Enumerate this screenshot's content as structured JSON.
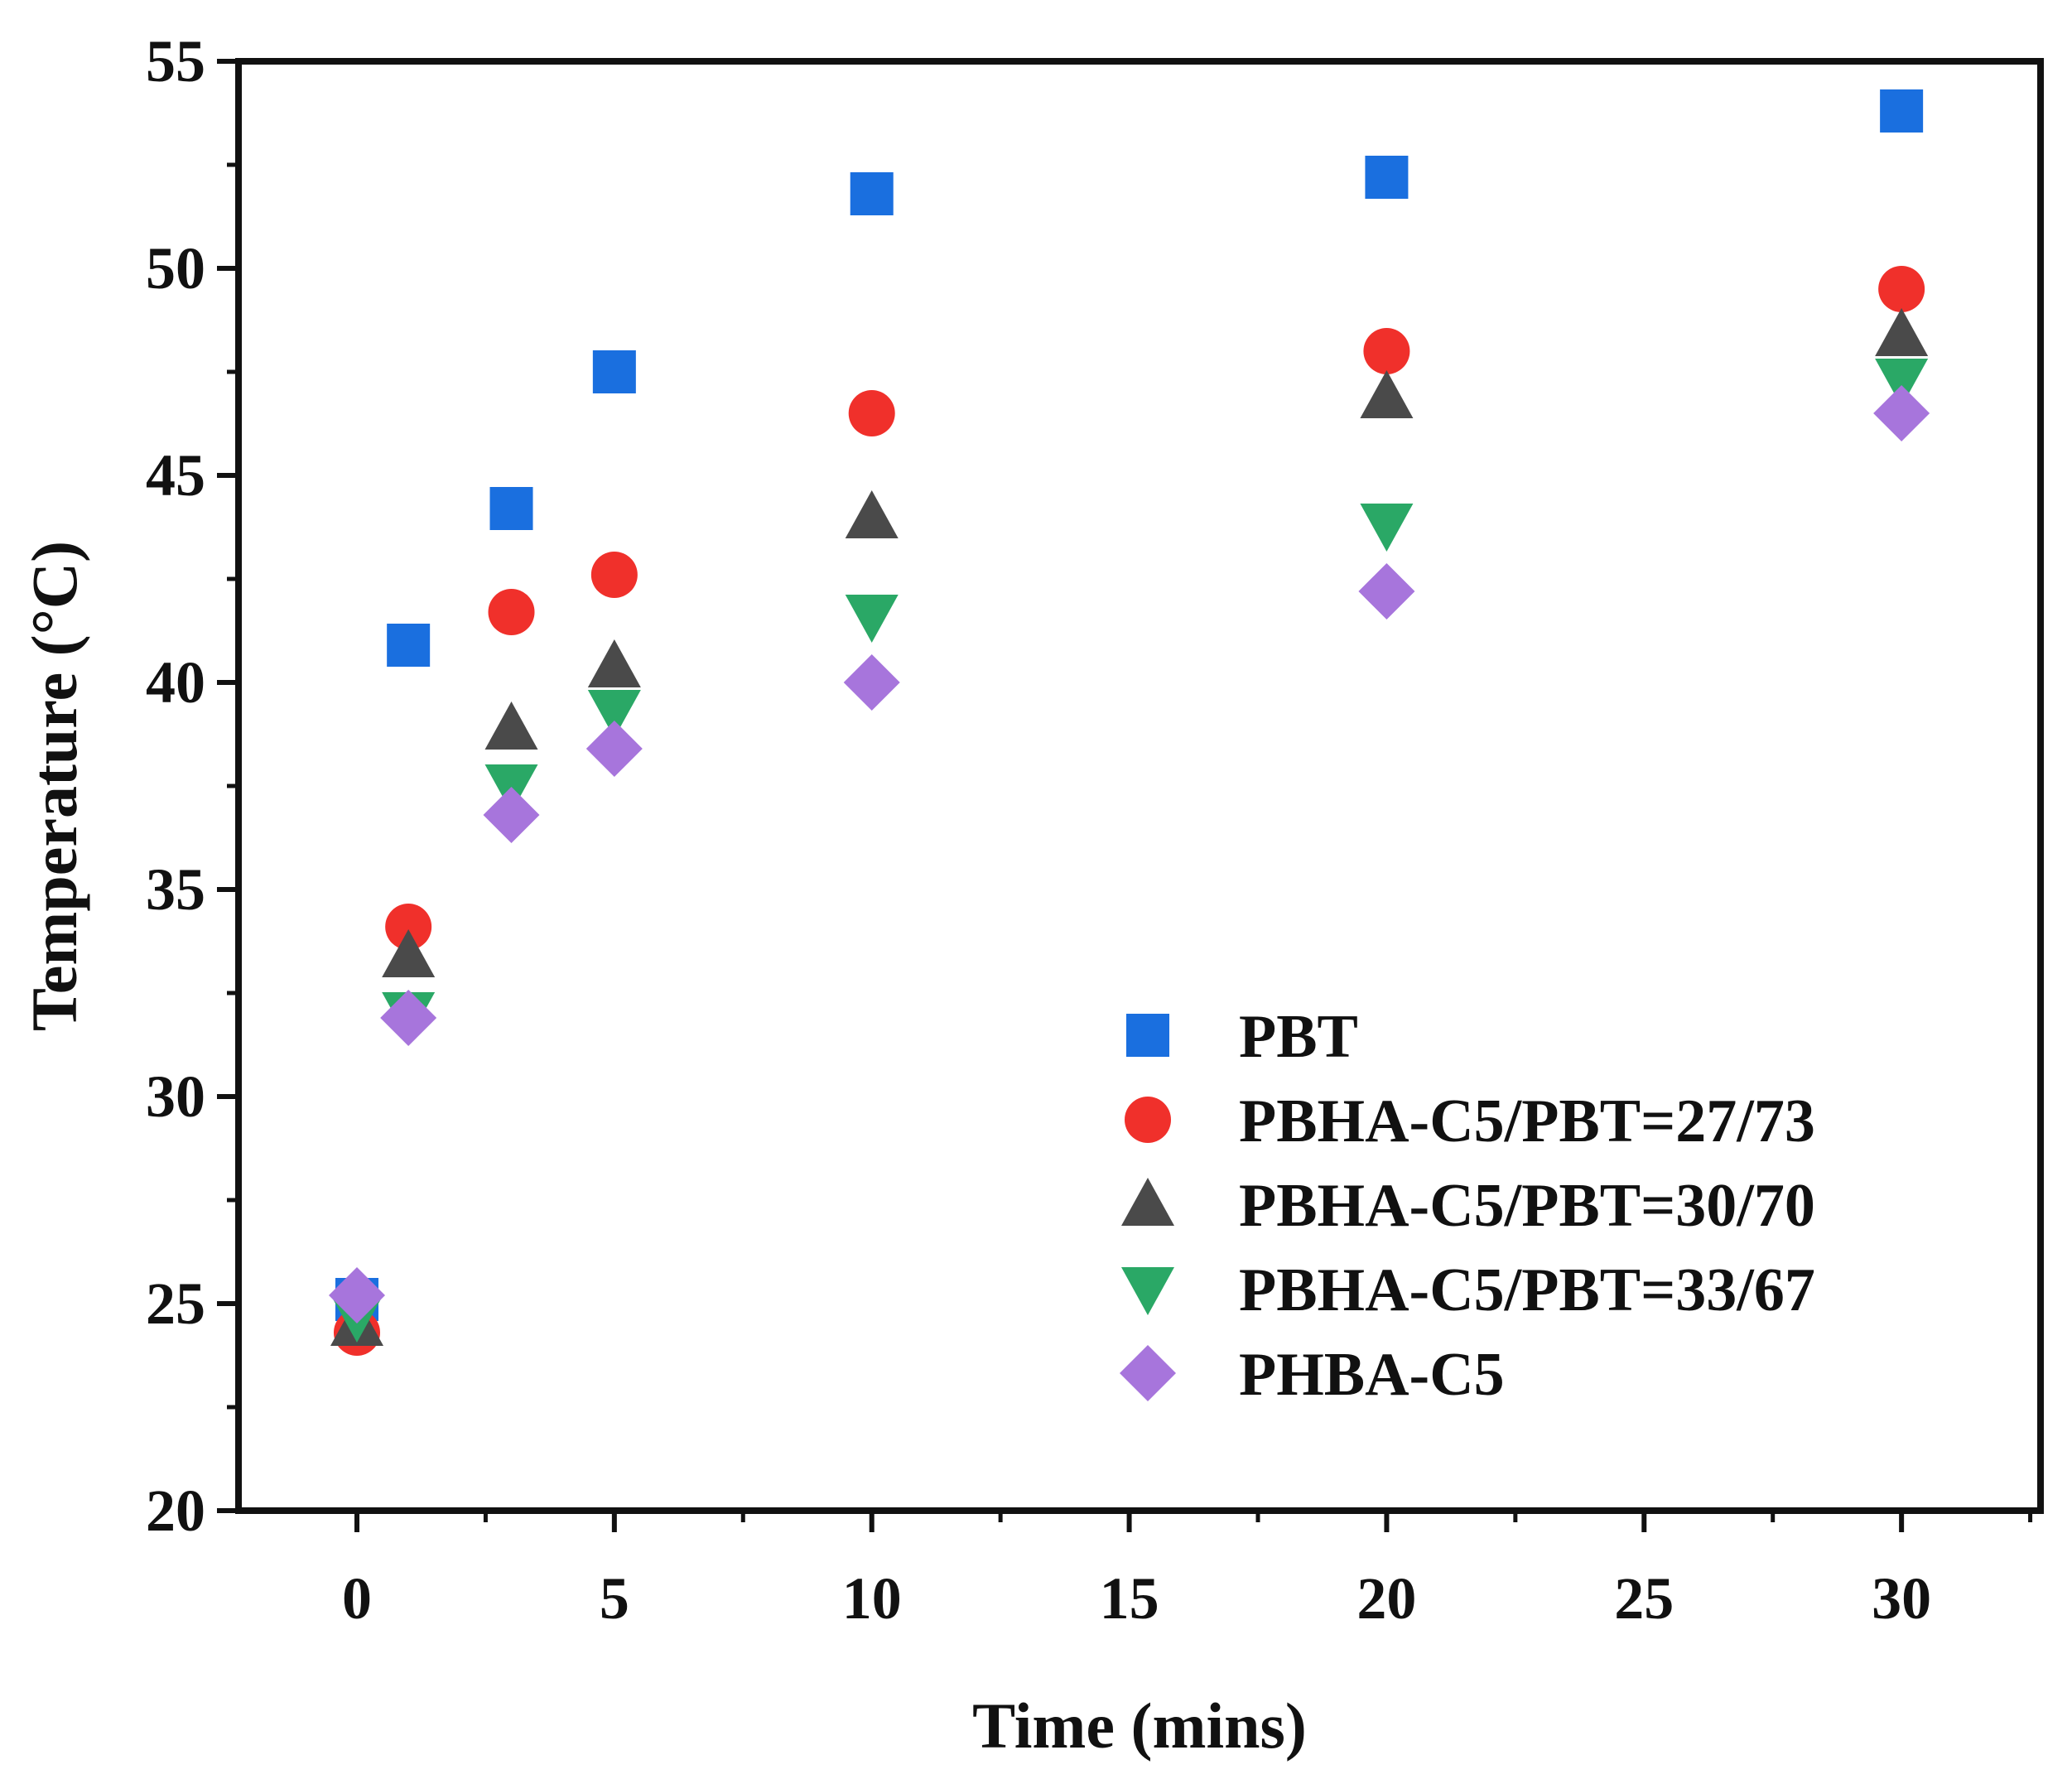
{
  "chart_data": {
    "type": "scatter",
    "title": "",
    "xlabel": "Time (mins)",
    "ylabel": "Temperature (°C)",
    "xlim": [
      -2.3,
      32.7
    ],
    "ylim": [
      20,
      55
    ],
    "xticks": [
      0,
      5,
      10,
      15,
      20,
      25,
      30
    ],
    "yticks": [
      20,
      25,
      30,
      35,
      40,
      45,
      50,
      55
    ],
    "grid": false,
    "legend_position": "bottom-right",
    "x": [
      0,
      1,
      3,
      5,
      10,
      20,
      30
    ],
    "series": [
      {
        "name": "PBT",
        "marker": "square",
        "color": "#1a6fdf",
        "values": [
          25.1,
          40.9,
          44.2,
          47.5,
          51.8,
          52.2,
          53.8
        ]
      },
      {
        "name": "PBHA-C5/PBT=27/73",
        "marker": "circle",
        "color": "#f0302b",
        "values": [
          24.3,
          34.1,
          41.7,
          42.6,
          46.5,
          48.0,
          49.5
        ]
      },
      {
        "name": "PBHA-C5/PBT=30/70",
        "marker": "triangle-up",
        "color": "#4a4a4a",
        "values": [
          24.5,
          33.4,
          38.9,
          40.4,
          44.0,
          46.9,
          48.4
        ]
      },
      {
        "name": "PBHA-C5/PBT=33/67",
        "marker": "triangle-down",
        "color": "#2aa866",
        "values": [
          24.7,
          32.0,
          37.5,
          39.3,
          41.6,
          43.8,
          47.3
        ]
      },
      {
        "name": "PHBA-C5",
        "marker": "diamond",
        "color": "#a775dc",
        "values": [
          25.2,
          31.9,
          36.8,
          38.4,
          40.0,
          42.2,
          46.5
        ]
      }
    ]
  }
}
